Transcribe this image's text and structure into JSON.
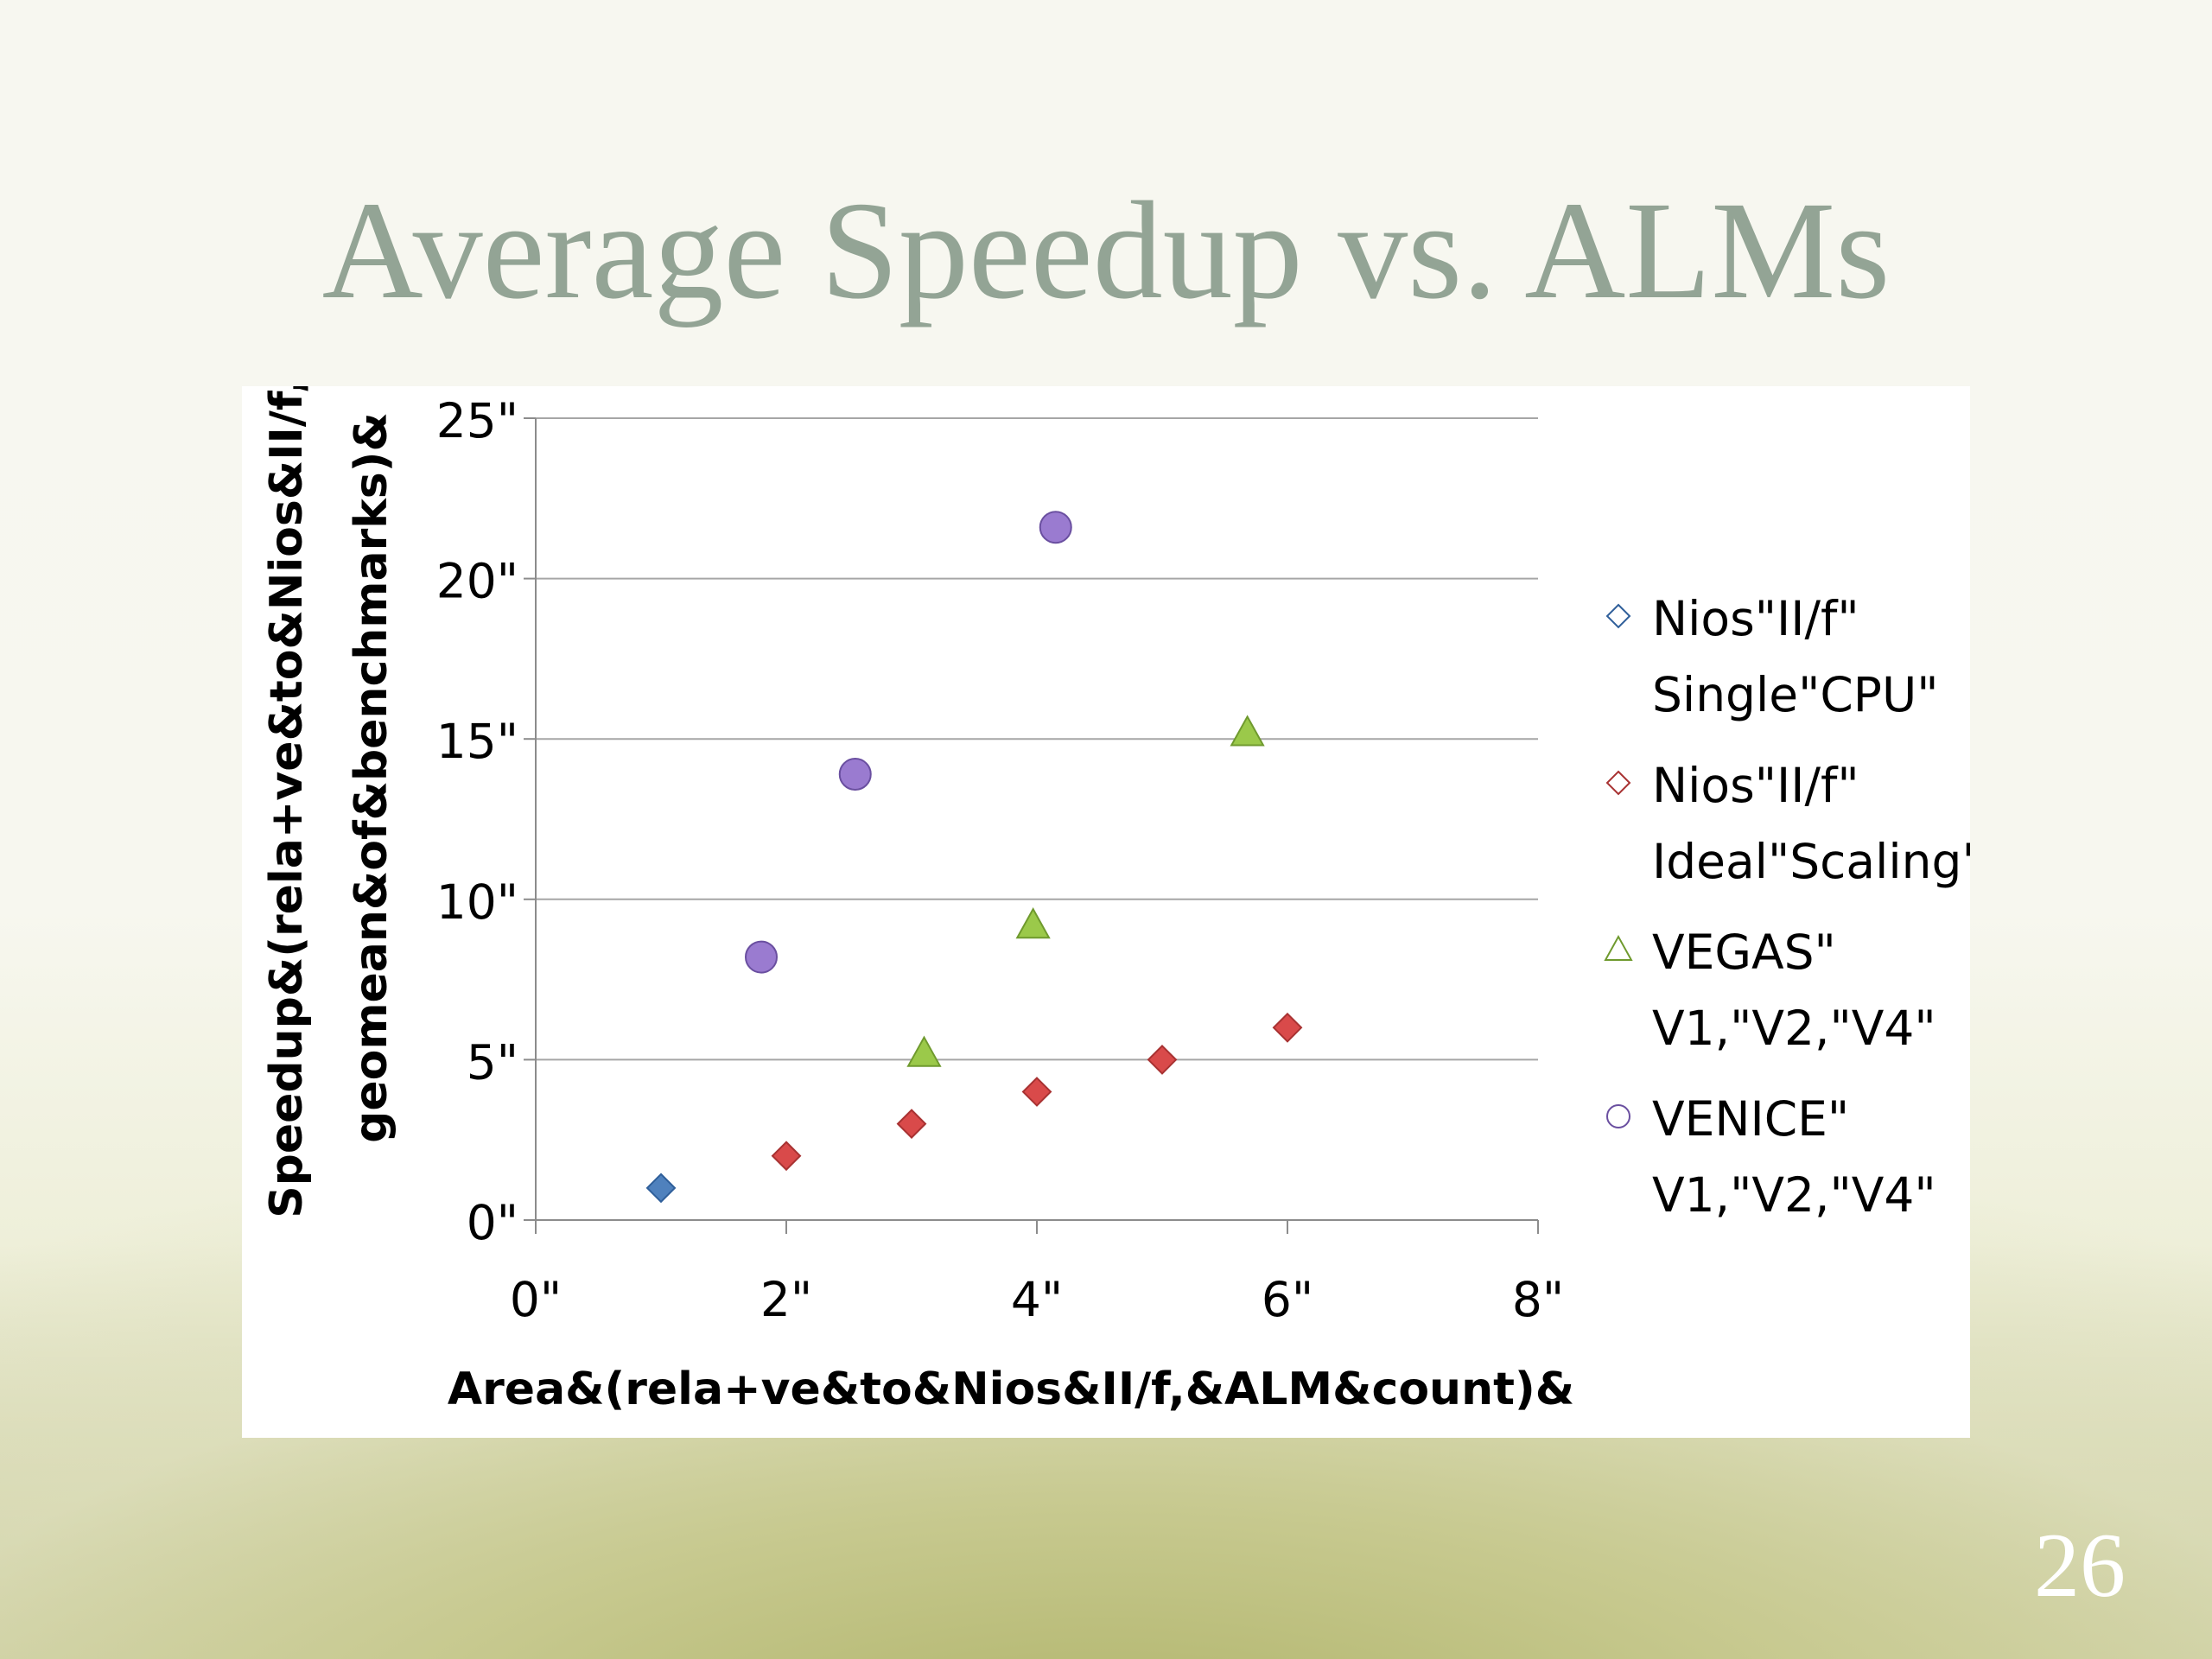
{
  "slide": {
    "title": "Average Speedup vs. ALMs",
    "page_number": "26"
  },
  "chart_data": {
    "type": "scatter",
    "title": "",
    "xlabel": "Area&(rela+ve&to&Nios&II/f,&ALM&count)&",
    "ylabel_lines": [
      "Speedup&(rela+ve&to&Nios&II/f,&",
      "geomean&of&benchmarks)&"
    ],
    "xlim": [
      0,
      8
    ],
    "ylim": [
      0,
      25
    ],
    "x_ticks": [
      0,
      2,
      4,
      6,
      8
    ],
    "x_tick_labels": [
      "0\"",
      "2\"",
      "4\"",
      "6\"",
      "8\""
    ],
    "y_ticks": [
      0,
      5,
      10,
      15,
      20,
      25
    ],
    "y_tick_labels": [
      "0\"",
      "5\"",
      "10\"",
      "15\"",
      "20\"",
      "25\""
    ],
    "grid": "horizontal",
    "legend_position": "right",
    "series": [
      {
        "name_lines": [
          "Nios\"II/f\"",
          "Single\"CPU\""
        ],
        "marker": "diamond",
        "color": "#4f81bd",
        "edge": "#2f5f9a",
        "points": [
          [
            1,
            1
          ]
        ]
      },
      {
        "name_lines": [
          "Nios\"II/f\"",
          "Ideal\"Scaling\""
        ],
        "marker": "diamond",
        "color": "#d94a4a",
        "edge": "#a83232",
        "points": [
          [
            2,
            2
          ],
          [
            3,
            3
          ],
          [
            4,
            4
          ],
          [
            5,
            5
          ],
          [
            6,
            6
          ]
        ]
      },
      {
        "name_lines": [
          "VEGAS\"",
          "V1,\"V2,\"V4\""
        ],
        "marker": "triangle",
        "color": "#9bc94a",
        "edge": "#6f9a2e",
        "points": [
          [
            3.1,
            5.2
          ],
          [
            3.97,
            9.2
          ],
          [
            5.68,
            15.2
          ]
        ]
      },
      {
        "name_lines": [
          "VENICE\"",
          "V1,\"V2,\"V4\""
        ],
        "marker": "circle",
        "color": "#9a7bd0",
        "edge": "#6a4fa0",
        "points": [
          [
            1.8,
            8.2
          ],
          [
            2.55,
            13.9
          ],
          [
            4.15,
            21.6
          ]
        ]
      }
    ]
  }
}
